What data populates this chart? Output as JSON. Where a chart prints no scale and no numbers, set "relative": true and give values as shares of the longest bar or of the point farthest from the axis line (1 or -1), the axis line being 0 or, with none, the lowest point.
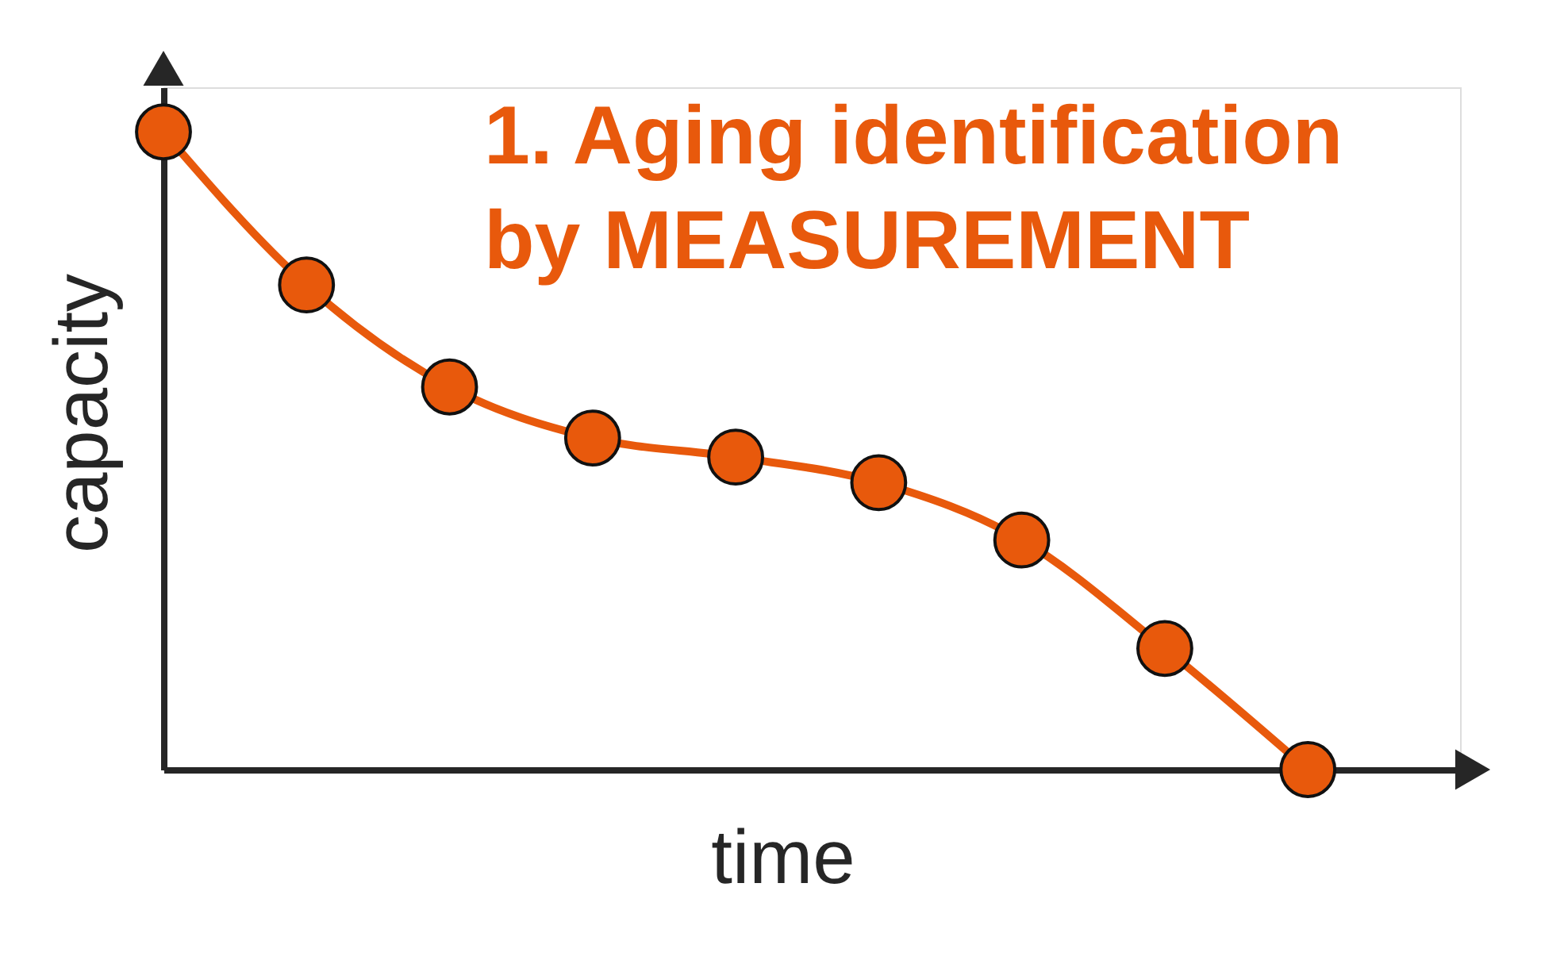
{
  "chart_data": {
    "type": "line",
    "relative": true,
    "title": "1. Aging identification by MEASUREMENT",
    "xlabel": "time",
    "ylabel": "capacity",
    "categories": [
      null,
      null,
      null,
      null,
      null,
      null,
      null,
      null,
      null
    ],
    "series": [
      {
        "color": "#e8590c",
        "values": [
          1,
          0.76,
          0.6,
          0.52,
          0.49,
          0.45,
          0.36,
          0.19,
          0
        ]
      }
    ],
    "marker": "circle",
    "line_style": "solid",
    "grid": false
  }
}
